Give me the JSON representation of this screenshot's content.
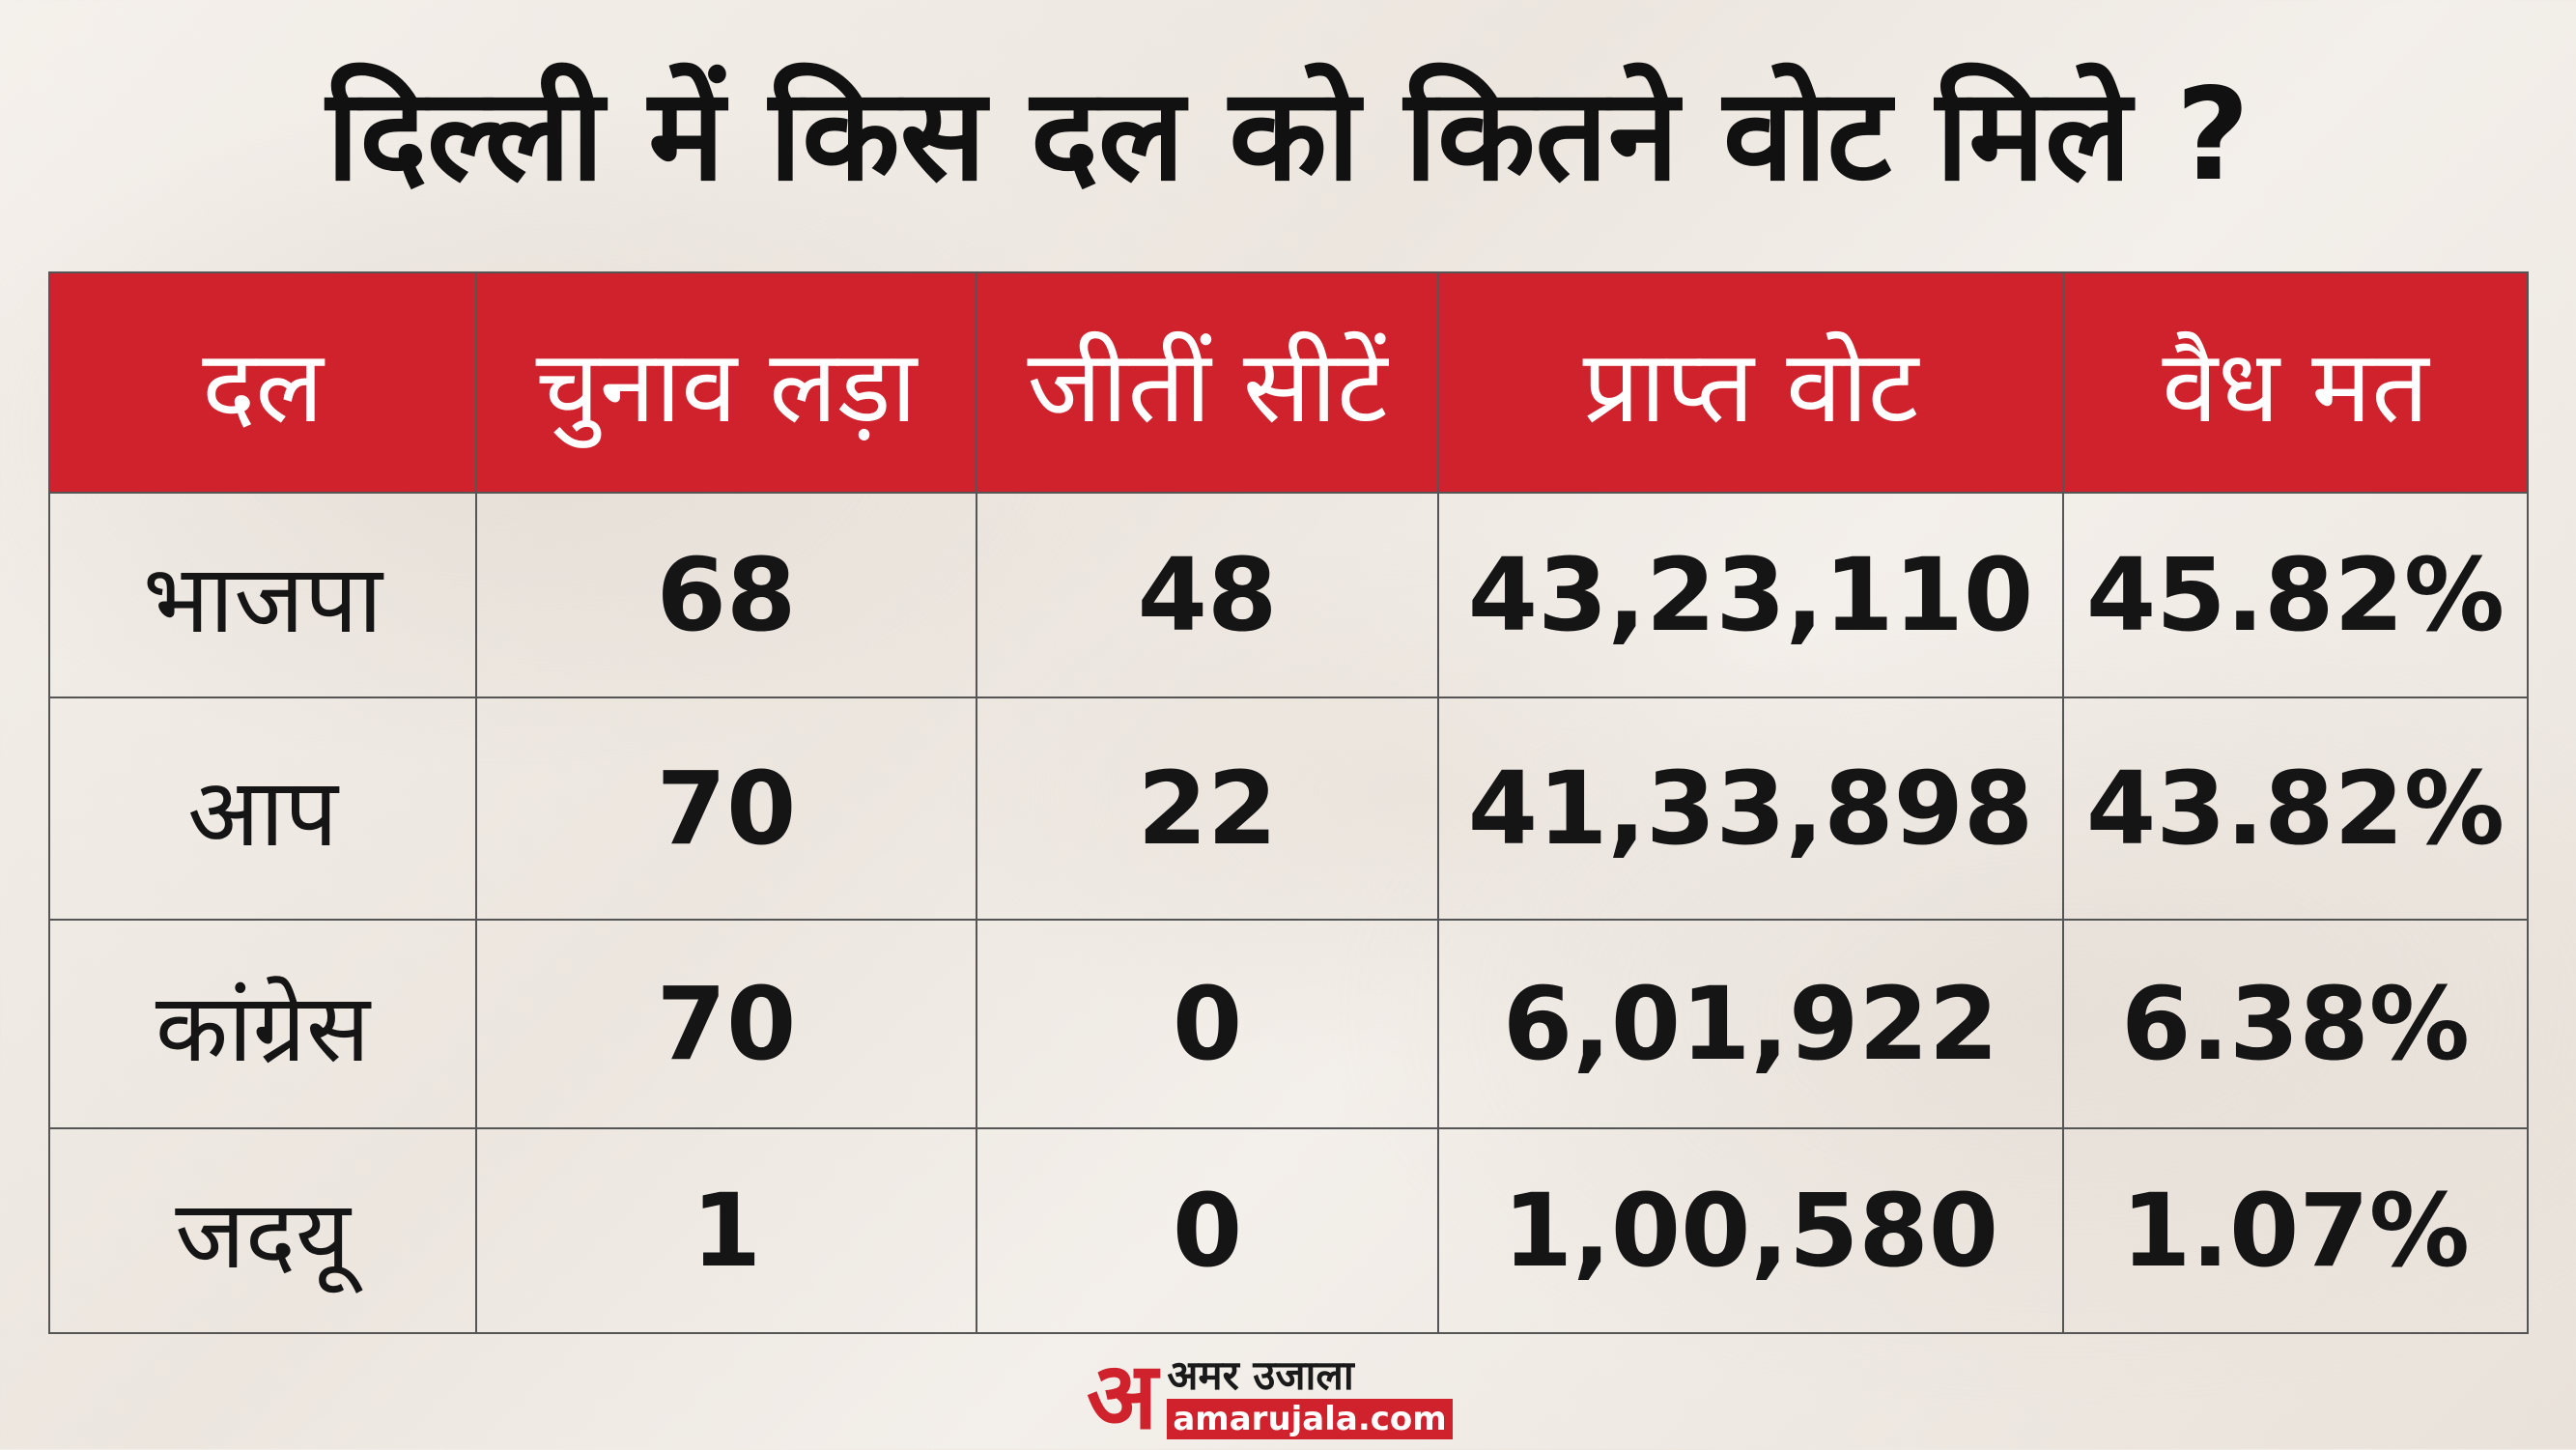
{
  "title": "दिल्ली में किस दल को कितने वोट मिले ?",
  "table": {
    "headers": [
      "दल",
      "चुनाव लड़ा",
      "जीतीं सीटें",
      "प्राप्त वोट",
      "वैध मत"
    ],
    "rows": [
      [
        "भाजपा",
        "68",
        "48",
        "43,23,110",
        "45.82%"
      ],
      [
        "आप",
        "70",
        "22",
        "41,33,898",
        "43.82%"
      ],
      [
        "कांग्रेस",
        "70",
        "0",
        "6,01,922",
        "6.38%"
      ],
      [
        "जदयू",
        "1",
        "0",
        "1,00,580",
        "1.07%"
      ]
    ]
  },
  "logo": {
    "mark": "अ",
    "name": "अमर उजाला",
    "url": "amarujala.com"
  },
  "colors": {
    "header_bg": "#d0222d",
    "header_text": "#ffffff",
    "logo_accent": "#d0222d"
  }
}
